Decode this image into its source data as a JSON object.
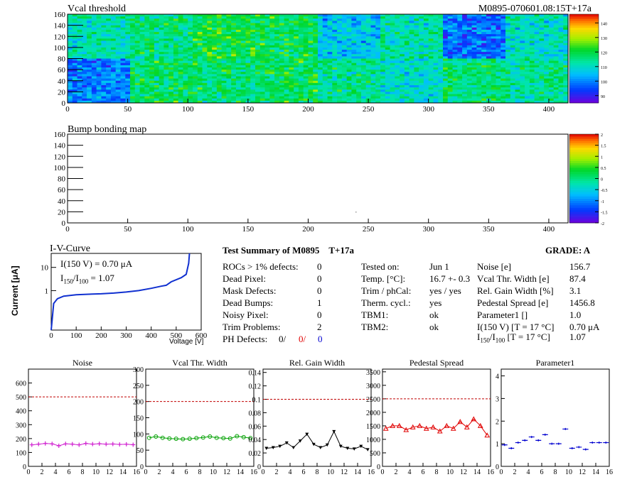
{
  "vcal_map": {
    "title": "Vcal threshold",
    "module_label": "M0895-070601.08:15T+17a",
    "xticks": [
      "0",
      "50",
      "100",
      "150",
      "200",
      "250",
      "300",
      "350",
      "400"
    ],
    "yticks": [
      "0",
      "20",
      "40",
      "60",
      "80",
      "100",
      "120",
      "140",
      "160"
    ],
    "xrange": [
      0,
      416
    ],
    "yrange": [
      0,
      160
    ],
    "palette_ticks": [
      "90",
      "100",
      "110",
      "120",
      "130",
      "140"
    ],
    "palette_range": [
      85,
      146
    ],
    "roc_means_top": [
      112,
      116,
      120,
      118,
      106,
      112,
      98,
      110
    ],
    "roc_means_bottom": [
      100,
      118,
      116,
      118,
      114,
      110,
      116,
      114
    ]
  },
  "bump_map": {
    "title": "Bump bonding map",
    "xticks": [
      "0",
      "50",
      "100",
      "150",
      "200",
      "250",
      "300",
      "350",
      "400"
    ],
    "yticks": [
      "0",
      "20",
      "40",
      "60",
      "80",
      "100",
      "120",
      "140",
      "160"
    ],
    "palette_ticks": [
      "-2",
      "-1.5",
      "-1",
      "-0.5",
      "0",
      "0.5",
      "1",
      "1.5",
      "2"
    ],
    "palette_range": [
      -2,
      2
    ]
  },
  "iv_curve": {
    "title": "I-V-Curve",
    "ylabel": "Current [μA]",
    "xlabel": "Voltage [V]",
    "xticks": [
      "0",
      "100",
      "200",
      "300",
      "400",
      "500",
      "600"
    ],
    "yticks": [
      "1",
      "10"
    ],
    "annot1": "I(150 V) = 0.70 μA",
    "annot2_lhs": "I",
    "annot2_sub1": "150",
    "annot2_mid": "/I",
    "annot2_sub2": "100",
    "annot2_rhs": " =  1.07",
    "points": [
      [
        0,
        0.02
      ],
      [
        10,
        0.28
      ],
      [
        25,
        0.45
      ],
      [
        50,
        0.58
      ],
      [
        100,
        0.66
      ],
      [
        150,
        0.7
      ],
      [
        200,
        0.73
      ],
      [
        250,
        0.78
      ],
      [
        300,
        0.87
      ],
      [
        350,
        1.0
      ],
      [
        400,
        1.25
      ],
      [
        440,
        1.55
      ],
      [
        460,
        1.7
      ],
      [
        480,
        2.4
      ],
      [
        520,
        3.6
      ],
      [
        540,
        5.0
      ],
      [
        550,
        15
      ],
      [
        553,
        40
      ]
    ]
  },
  "summary": {
    "title": "Test Summary of M0895",
    "tag": "T+17a",
    "grade_label": "GRADE:  A",
    "defects": [
      {
        "label": "ROCs > 1% defects:",
        "value": "0"
      },
      {
        "label": "Dead Pixel:",
        "value": "0"
      },
      {
        "label": "Mask Defects:",
        "value": "0"
      },
      {
        "label": "Dead Bumps:",
        "value": "1"
      },
      {
        "label": "Noisy Pixel:",
        "value": "0"
      },
      {
        "label": "Trim Problems:",
        "value": "2"
      }
    ],
    "ph_label": "PH Defects:",
    "ph_values": [
      "0/",
      "0/",
      "0"
    ],
    "conditions": [
      {
        "label": "Tested on:",
        "value": "Jun 1"
      },
      {
        "label": "Temp. [°C]:",
        "value": "16.7 +- 0.3"
      },
      {
        "label": "Trim / phCal:",
        "value": "yes / yes"
      },
      {
        "label": "Therm. cycl.:",
        "value": "yes"
      },
      {
        "label": "TBM1:",
        "value": "ok"
      },
      {
        "label": "TBM2:",
        "value": "ok"
      }
    ],
    "results": [
      {
        "label": "Noise [e]",
        "value": "156.7"
      },
      {
        "label": "Vcal Thr. Width [e]",
        "value": "87.4"
      },
      {
        "label": "Rel. Gain Width [%]",
        "value": "3.1"
      },
      {
        "label": "Pedestal Spread [e]",
        "value": "1456.8"
      },
      {
        "label": "Parameter1 []",
        "value": "1.0"
      },
      {
        "label": "I(150 V) [T = 17 °C]",
        "value": "0.70 μA"
      }
    ],
    "ratio_label_pre": "I",
    "ratio_sub1": "150",
    "ratio_mid": "/I",
    "ratio_sub2": "100",
    "ratio_label_post": "  [T = 17 °C]",
    "ratio_value": "1.07"
  },
  "chart_data": [
    {
      "type": "line",
      "title": "Noise",
      "x": [
        0,
        1,
        2,
        3,
        4,
        5,
        6,
        7,
        8,
        9,
        10,
        11,
        12,
        13,
        14,
        15
      ],
      "values": [
        155,
        160,
        165,
        162,
        148,
        162,
        160,
        155,
        165,
        160,
        163,
        160,
        161,
        158,
        159,
        156
      ],
      "xlim": [
        0,
        16
      ],
      "ylim": [
        0,
        700
      ],
      "yticks": [
        "0",
        "100",
        "200",
        "300",
        "400",
        "500",
        "600"
      ],
      "xticks": [
        "0",
        "2",
        "4",
        "6",
        "8",
        "10",
        "12",
        "14",
        "16"
      ],
      "cut": 500,
      "color": "#d020d0",
      "marker": "plus"
    },
    {
      "type": "line",
      "title": "Vcal Thr. Width",
      "x": [
        0,
        1,
        2,
        3,
        4,
        5,
        6,
        7,
        8,
        9,
        10,
        11,
        12,
        13,
        14,
        15
      ],
      "values": [
        88,
        92,
        88,
        86,
        85,
        84,
        85,
        87,
        89,
        92,
        88,
        87,
        86,
        93,
        90,
        87
      ],
      "xlim": [
        0,
        16
      ],
      "ylim": [
        0,
        300
      ],
      "yticks": [
        "0",
        "50",
        "100",
        "150",
        "200",
        "250",
        "300"
      ],
      "xticks": [
        "0",
        "2",
        "4",
        "6",
        "8",
        "10",
        "12",
        "14",
        "16"
      ],
      "cut": 200,
      "color": "#00a000",
      "marker": "circle"
    },
    {
      "type": "line",
      "title": "Rel. Gain Width",
      "x": [
        0,
        1,
        2,
        3,
        4,
        5,
        6,
        7,
        8,
        9,
        10,
        11,
        12,
        13,
        14,
        15
      ],
      "values": [
        0.027,
        0.028,
        0.03,
        0.035,
        0.028,
        0.038,
        0.048,
        0.033,
        0.028,
        0.032,
        0.052,
        0.03,
        0.027,
        0.026,
        0.03,
        0.025
      ],
      "xlim": [
        0,
        16
      ],
      "ylim": [
        0,
        0.145
      ],
      "yticks": [
        "0",
        "0.02",
        "0.04",
        "0.06",
        "0.08",
        "0.1",
        "0.12",
        "0.14"
      ],
      "xticks": [
        "0",
        "2",
        "4",
        "6",
        "8",
        "10",
        "12",
        "14",
        "16"
      ],
      "cut": 0.1,
      "color": "#000000",
      "marker": "triangle-down"
    },
    {
      "type": "line",
      "title": "Pedestal Spread",
      "x": [
        0,
        1,
        2,
        3,
        4,
        5,
        6,
        7,
        8,
        9,
        10,
        11,
        12,
        13,
        14,
        15
      ],
      "values": [
        1400,
        1500,
        1500,
        1350,
        1450,
        1500,
        1400,
        1450,
        1300,
        1500,
        1400,
        1650,
        1450,
        1750,
        1500,
        1150
      ],
      "xlim": [
        0,
        16
      ],
      "ylim": [
        0,
        3600
      ],
      "yticks": [
        "0",
        "500",
        "1000",
        "1500",
        "2000",
        "2500",
        "3000",
        "3500"
      ],
      "xticks": [
        "0",
        "2",
        "4",
        "6",
        "8",
        "10",
        "12",
        "14",
        "16"
      ],
      "cut": 2500,
      "color": "#e00000",
      "marker": "triangle-up"
    },
    {
      "type": "scatter",
      "title": "Parameter1",
      "x": [
        0,
        1,
        2,
        3,
        4,
        5,
        6,
        7,
        8,
        9,
        10,
        11,
        12,
        13,
        14,
        15
      ],
      "values": [
        0.95,
        0.8,
        1.05,
        1.15,
        1.3,
        1.15,
        1.4,
        1.0,
        1.0,
        1.65,
        0.8,
        0.85,
        0.75,
        1.05,
        1.05,
        1.05
      ],
      "xlim": [
        0,
        16
      ],
      "ylim": [
        0,
        4.3
      ],
      "yticks": [
        "0",
        "1",
        "2",
        "3",
        "4"
      ],
      "xticks": [
        "0",
        "2",
        "4",
        "6",
        "8",
        "10",
        "12",
        "14",
        "16"
      ],
      "cut": null,
      "color": "#0000d0",
      "marker": "hbar"
    }
  ]
}
